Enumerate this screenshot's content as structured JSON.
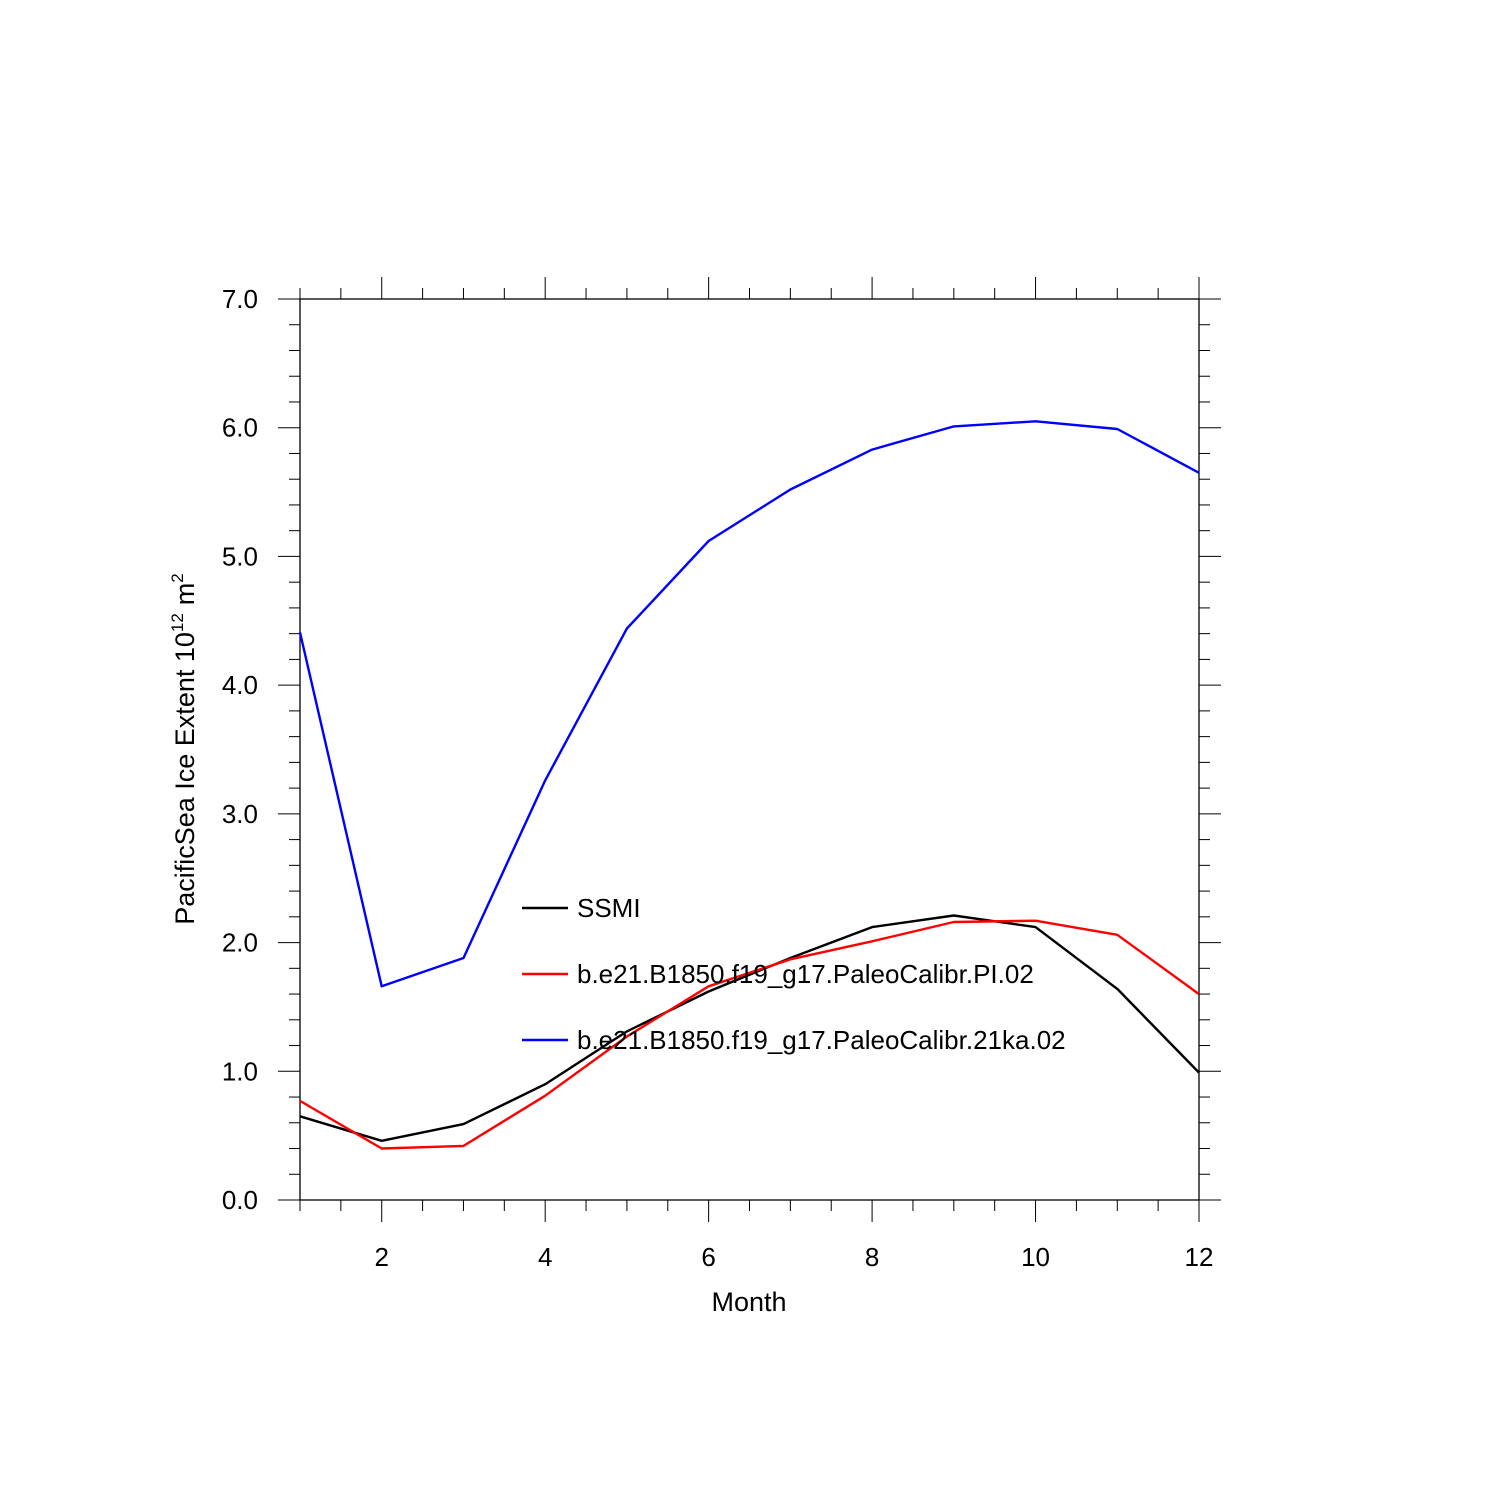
{
  "chart_data": {
    "type": "line",
    "title": "",
    "xlabel": "Month",
    "ylabel": {
      "main": "PacificSea Ice Extent 10",
      "exponent": "12",
      "unit": "m",
      "unit_exponent": "2"
    },
    "xlim": [
      1,
      12
    ],
    "ylim": [
      0.0,
      7.0
    ],
    "x_ticks": [
      2,
      4,
      6,
      8,
      10,
      12
    ],
    "x_tick_labels": [
      "2",
      "4",
      "6",
      "8",
      "10",
      "12"
    ],
    "y_ticks": [
      0.0,
      1.0,
      2.0,
      3.0,
      4.0,
      5.0,
      6.0,
      7.0
    ],
    "y_tick_labels": [
      "0.0",
      "1.0",
      "2.0",
      "3.0",
      "4.0",
      "5.0",
      "6.0",
      "7.0"
    ],
    "grid": false,
    "legend_placement": "inside-center",
    "x": [
      1,
      2,
      3,
      4,
      5,
      6,
      7,
      8,
      9,
      10,
      11,
      12
    ],
    "series": [
      {
        "name": "SSMI",
        "color": "#000000",
        "values": [
          0.65,
          0.46,
          0.59,
          0.9,
          1.31,
          1.62,
          1.88,
          2.12,
          2.21,
          2.12,
          1.64,
          0.99
        ]
      },
      {
        "name": "b.e21.B1850.f19_g17.PaleoCalibr.PI.02",
        "color": "#ff0000",
        "values": [
          0.77,
          0.4,
          0.42,
          0.81,
          1.27,
          1.66,
          1.87,
          2.01,
          2.16,
          2.17,
          2.06,
          1.6
        ]
      },
      {
        "name": "b.e21.B1850.f19_g17.PaleoCalibr.21ka.02",
        "color": "#0000ff",
        "values": [
          4.41,
          1.66,
          1.88,
          3.26,
          4.44,
          5.12,
          5.52,
          5.83,
          6.01,
          6.05,
          5.99,
          5.65
        ]
      }
    ]
  }
}
